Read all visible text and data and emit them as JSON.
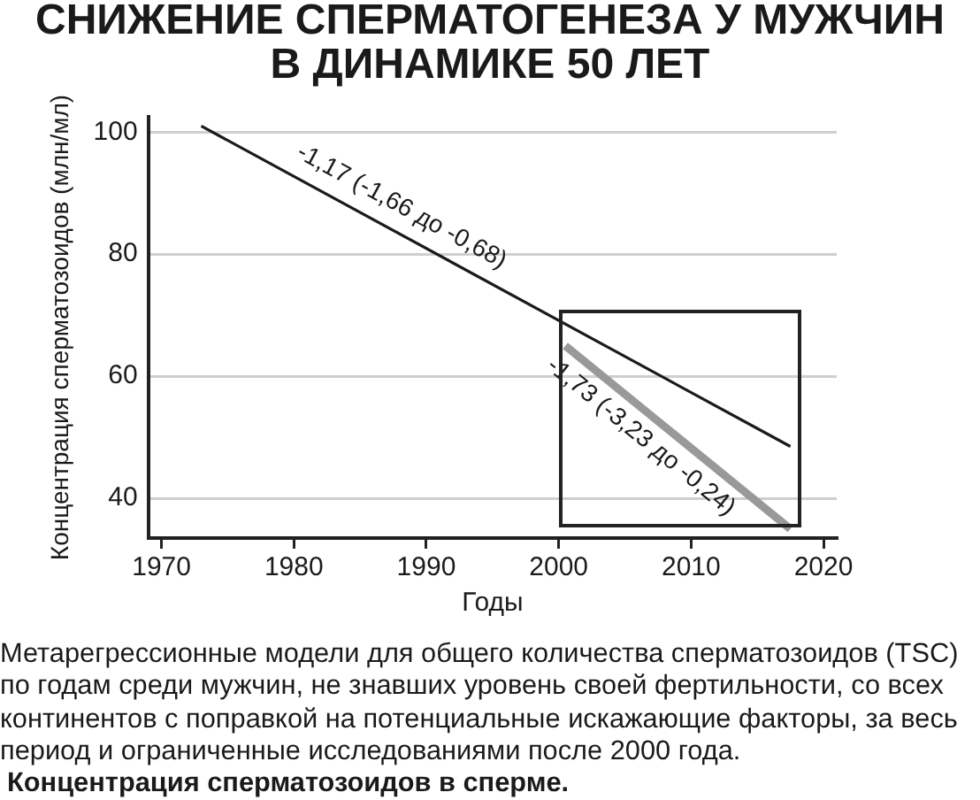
{
  "chart_data": {
    "type": "line",
    "title": "СНИЖЕНИЕ СПЕРМАТОГЕНЕЗА У МУЖЧИН В ДИНАМИКЕ 50 ЛЕТ",
    "xlabel": "Годы",
    "ylabel": "Концентрация сперматозоидов (млн/мл)",
    "series": [
      {
        "name": "-1,17 (-1,66 до -0,68)",
        "color": "#1a1a1a",
        "x": [
          1973,
          2017.5
        ],
        "values": [
          101,
          48.5
        ]
      },
      {
        "name": "-1,73 (-3,23 до -0,24)",
        "color": "#999999",
        "x": [
          2000.5,
          2017.5
        ],
        "values": [
          65,
          35
        ]
      }
    ],
    "xlim": [
      1969,
      2021
    ],
    "ylim": [
      33.5,
      102.5
    ],
    "xticks": [
      1970,
      1980,
      1990,
      2000,
      2010,
      2020
    ],
    "yticks": [
      40,
      60,
      80,
      100
    ],
    "grid": "y",
    "marker": "none",
    "annotations": [
      "Метарегрессионные модели для общего количества сперматозоидов (TSC) по годам среди мужчин, не знавших уровень своей фертильности, со всех континентов с поправкой на потенциальные искажающие факторы, за весь период и ограниченные исследованиями после 2000 года.",
      "Концентрация сперматозоидов в сперме."
    ]
  }
}
